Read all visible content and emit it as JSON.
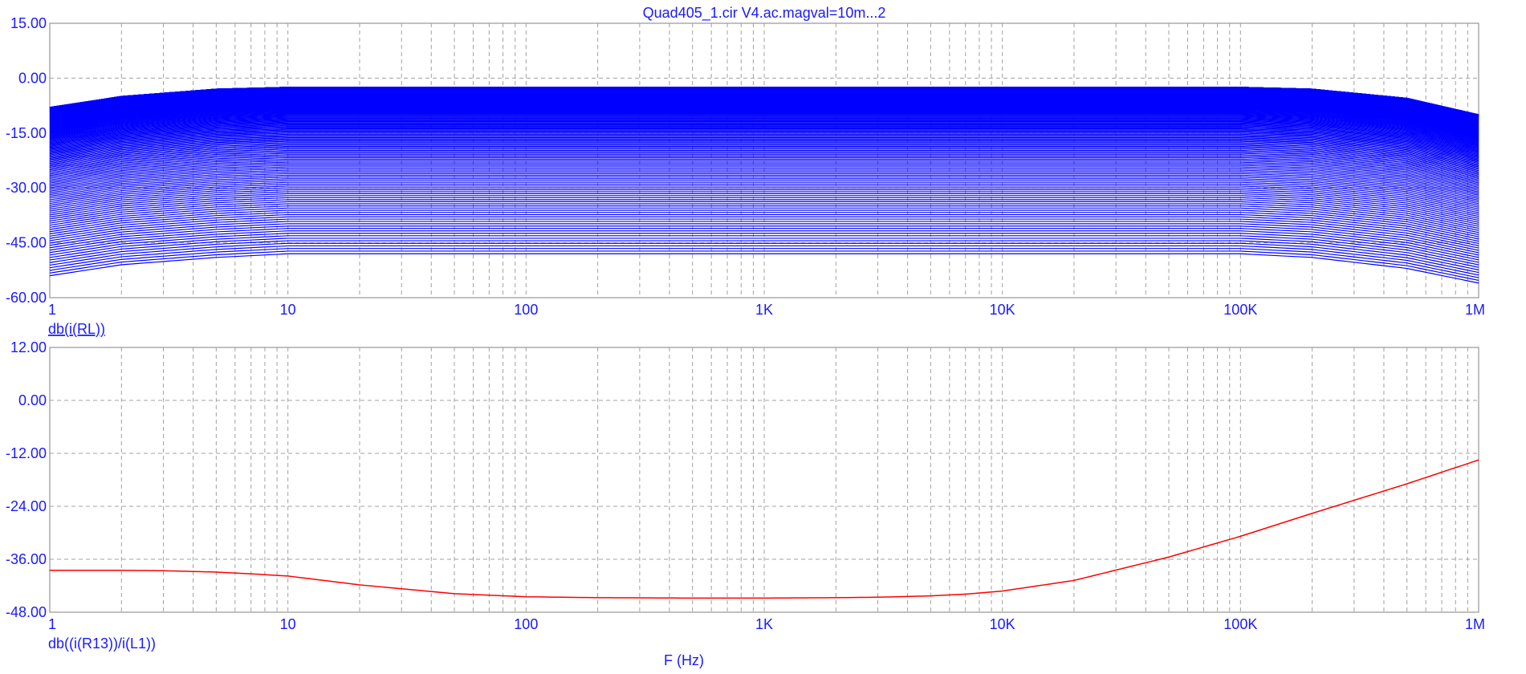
{
  "title": "Quad405_1.cir V4.ac.magval=10m...2",
  "xlabel": "F (Hz)",
  "colors": {
    "axis_text": "#1a1aff",
    "top_series": "#0000ff",
    "bottom_series": "#ff0000",
    "grid": "#a0a0a0",
    "frame": "#808080"
  },
  "chart_data": [
    {
      "type": "line",
      "xscale": "log",
      "xlim": [
        1,
        1000000
      ],
      "ylim": [
        -60,
        15
      ],
      "xticks": [
        {
          "v": 1,
          "label": "1"
        },
        {
          "v": 10,
          "label": "10"
        },
        {
          "v": 100,
          "label": "100"
        },
        {
          "v": 1000,
          "label": "1K"
        },
        {
          "v": 10000,
          "label": "10K"
        },
        {
          "v": 100000,
          "label": "100K"
        },
        {
          "v": 1000000,
          "label": "1M"
        }
      ],
      "yticks": [
        {
          "v": 15,
          "label": "15.00"
        },
        {
          "v": 0,
          "label": "0.00"
        },
        {
          "v": -15,
          "label": "-15.00"
        },
        {
          "v": -30,
          "label": "-30.00"
        },
        {
          "v": -45,
          "label": "-45.00"
        },
        {
          "v": -60,
          "label": "-60.00"
        }
      ],
      "grid": true,
      "trace_label": "db(i(RL))",
      "series_family": {
        "count": 200,
        "x": [
          1,
          2,
          5,
          10,
          100,
          1000,
          10000,
          100000,
          200000,
          500000,
          1000000
        ],
        "curve_top": [
          -8,
          -5,
          -3,
          -2.5,
          -2.5,
          -2.5,
          -2.5,
          -2.5,
          -3,
          -5.5,
          -10
        ],
        "curve_bottom": [
          -54,
          -51,
          -49,
          -48,
          -48,
          -48,
          -48,
          -48,
          -49,
          -52,
          -56
        ]
      }
    },
    {
      "type": "line",
      "xscale": "log",
      "xlim": [
        1,
        1000000
      ],
      "ylim": [
        -48,
        12
      ],
      "xticks": [
        {
          "v": 1,
          "label": "1"
        },
        {
          "v": 10,
          "label": "10"
        },
        {
          "v": 100,
          "label": "100"
        },
        {
          "v": 1000,
          "label": "1K"
        },
        {
          "v": 10000,
          "label": "10K"
        },
        {
          "v": 100000,
          "label": "100K"
        },
        {
          "v": 1000000,
          "label": "1M"
        }
      ],
      "yticks": [
        {
          "v": 12,
          "label": "12.00"
        },
        {
          "v": 0,
          "label": "0.00"
        },
        {
          "v": -12,
          "label": "-12.00"
        },
        {
          "v": -24,
          "label": "-24.00"
        },
        {
          "v": -36,
          "label": "-36.00"
        },
        {
          "v": -48,
          "label": "-48.00"
        }
      ],
      "grid": true,
      "trace_label": "db((i(R13))/i(L1))",
      "series": [
        {
          "x": [
            1,
            2,
            3,
            5,
            7,
            10,
            20,
            50,
            100,
            200,
            500,
            1000,
            2000,
            3000,
            5000,
            7000,
            10000,
            20000,
            50000,
            100000,
            200000,
            500000,
            1000000
          ],
          "values": [
            -38.5,
            -38.5,
            -38.6,
            -38.9,
            -39.3,
            -39.8,
            -41.8,
            -43.8,
            -44.5,
            -44.7,
            -44.8,
            -44.8,
            -44.7,
            -44.6,
            -44.3,
            -43.9,
            -43.2,
            -40.8,
            -35.5,
            -30.8,
            -25.6,
            -18.9,
            -13.5
          ]
        }
      ]
    }
  ]
}
